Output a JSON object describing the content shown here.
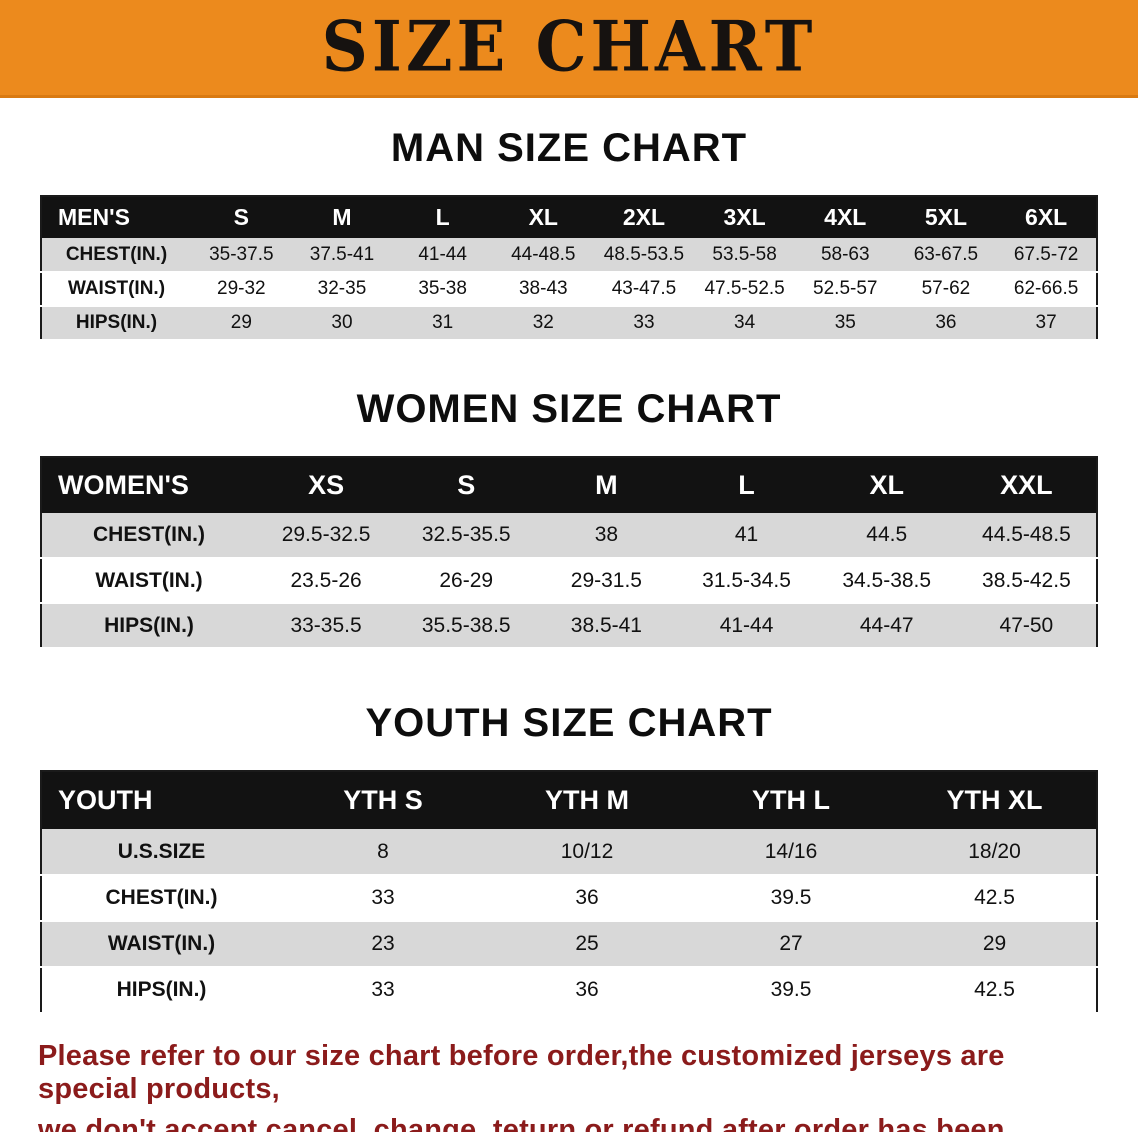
{
  "banner": {
    "title": "SIZE CHART"
  },
  "colors": {
    "banner_bg": "#ec8a1d",
    "table_header_bg": "#121212",
    "row_alt_gray": "#d8d8d8",
    "footer_text": "#8b1b1b"
  },
  "sections": [
    {
      "title": "MAN SIZE CHART",
      "table": {
        "header": [
          "MEN'S",
          "S",
          "M",
          "L",
          "XL",
          "2XL",
          "3XL",
          "4XL",
          "5XL",
          "6XL"
        ],
        "rows": [
          [
            "CHEST(IN.)",
            "35-37.5",
            "37.5-41",
            "41-44",
            "44-48.5",
            "48.5-53.5",
            "53.5-58",
            "58-63",
            "63-67.5",
            "67.5-72"
          ],
          [
            "WAIST(IN.)",
            "29-32",
            "32-35",
            "35-38",
            "38-43",
            "43-47.5",
            "47.5-52.5",
            "52.5-57",
            "57-62",
            "62-66.5"
          ],
          [
            "HIPS(IN.)",
            "29",
            "30",
            "31",
            "32",
            "33",
            "34",
            "35",
            "36",
            "37"
          ]
        ]
      }
    },
    {
      "title": "WOMEN SIZE CHART",
      "table": {
        "header": [
          "WOMEN'S",
          "XS",
          "S",
          "M",
          "L",
          "XL",
          "XXL"
        ],
        "rows": [
          [
            "CHEST(IN.)",
            "29.5-32.5",
            "32.5-35.5",
            "38",
            "41",
            "44.5",
            "44.5-48.5"
          ],
          [
            "WAIST(IN.)",
            "23.5-26",
            "26-29",
            "29-31.5",
            "31.5-34.5",
            "34.5-38.5",
            "38.5-42.5"
          ],
          [
            "HIPS(IN.)",
            "33-35.5",
            "35.5-38.5",
            "38.5-41",
            "41-44",
            "44-47",
            "47-50"
          ]
        ]
      }
    },
    {
      "title": "YOUTH SIZE CHART",
      "table": {
        "header": [
          "YOUTH",
          "YTH S",
          "YTH M",
          "YTH L",
          "YTH XL"
        ],
        "rows": [
          [
            "U.S.SIZE",
            "8",
            "10/12",
            "14/16",
            "18/20"
          ],
          [
            "CHEST(IN.)",
            "33",
            "36",
            "39.5",
            "42.5"
          ],
          [
            "WAIST(IN.)",
            "23",
            "25",
            "27",
            "29"
          ],
          [
            "HIPS(IN.)",
            "33",
            "36",
            "39.5",
            "42.5"
          ]
        ]
      }
    }
  ],
  "footer": {
    "lines": [
      "Please refer to our size chart before order,the customized jerseys are special products,",
      "we don't accept cancel, change, teturn or refund after order has been placed!"
    ]
  }
}
